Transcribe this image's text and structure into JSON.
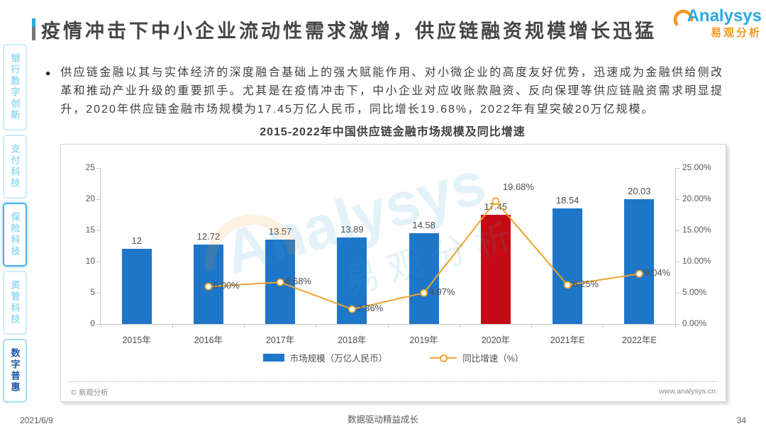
{
  "page": {
    "title": "疫情冲击下中小企业流动性需求激增，供应链融资规模增长迅猛",
    "logo": {
      "brand": "Analysys",
      "brand_cn": "易观分析"
    },
    "date": "2021/6/9",
    "footer_slogan": "数据驱动精益成长",
    "page_number": "34"
  },
  "sidebar": {
    "items": [
      {
        "label": "银行数字创新"
      },
      {
        "label": "支付科技"
      },
      {
        "label": "保险科技"
      },
      {
        "label": "资管科技"
      },
      {
        "label": "数字普惠"
      }
    ]
  },
  "body": {
    "bullet_marker": "●",
    "bullet_text": "供应链金融以其与实体经济的深度融合基础上的强大赋能作用、对小微企业的高度友好优势，迅速成为金融供给侧改革和推动产业升级的重要抓手。尤其是在疫情冲击下，中小企业对应收账款融资、反向保理等供应链融资需求明显提升，2020年供应链金融市场规模为17.45万亿人民币，同比增长19.68%，2022年有望突破20万亿规模。"
  },
  "chart_data": {
    "type": "bar",
    "title": "2015-2022年中国供应链金融市场规模及同比增速",
    "categories": [
      "2015年",
      "2016年",
      "2017年",
      "2018年",
      "2019年",
      "2020年",
      "2021年E",
      "2022年E"
    ],
    "series": [
      {
        "name": "市场规模（万亿人民币）",
        "type": "bar",
        "values": [
          12,
          12.72,
          13.57,
          13.89,
          14.58,
          17.45,
          18.54,
          20.03
        ],
        "labels": [
          "12",
          "12.72",
          "13.57",
          "13.89",
          "14.58",
          "17.45",
          "18.54",
          "20.03"
        ]
      },
      {
        "name": "同比增速（%）",
        "type": "line",
        "values": [
          null,
          6.0,
          6.68,
          2.36,
          4.97,
          19.68,
          6.25,
          8.04
        ],
        "labels": [
          "",
          "6.00%",
          "6.68%",
          "2.36%",
          "4.97%",
          "19.68%",
          "6.25%",
          "8.04%"
        ]
      }
    ],
    "highlight_index": 5,
    "y_left": {
      "min": 0,
      "max": 25,
      "ticks": [
        "0",
        "5",
        "10",
        "15",
        "20",
        "25"
      ]
    },
    "y_right": {
      "min": 0,
      "max": 25,
      "ticks": [
        "0.00%",
        "5.00%",
        "10.00%",
        "15.00%",
        "20.00%",
        "25.00%"
      ]
    },
    "grid": "off",
    "legend_position": "bottom",
    "colors": {
      "bar": "#1e76c8",
      "bar_highlight": "#c40b15",
      "line": "#efa32c"
    },
    "source_left": "© 易观分析",
    "source_right": "www.analysys.cn",
    "watermark_en": "Analysys",
    "watermark_cn": "易观分析"
  }
}
